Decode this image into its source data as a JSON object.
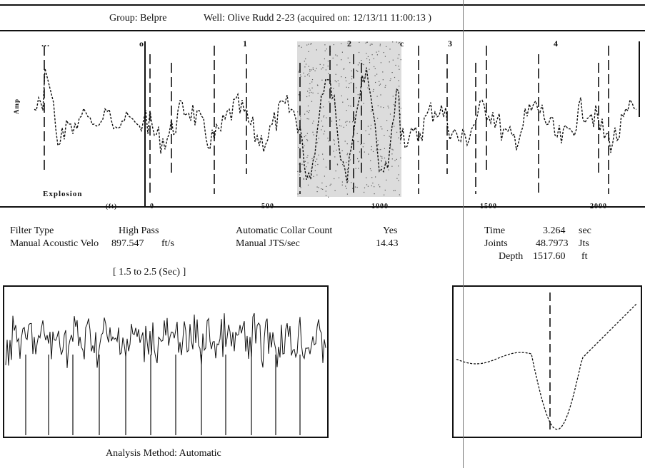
{
  "header": {
    "group_label": "Group: Belpre",
    "well_label": "Well: Olive Rudd 2-23 (acquired on: 12/13/11 11:00:13 )"
  },
  "main_trace": {
    "time_ticks": [
      ".5",
      "1",
      "2",
      "3",
      "4"
    ],
    "top_markers": [
      "...",
      "o",
      "c",
      "o"
    ],
    "depth_ticks": [
      "0",
      "500",
      "1000",
      "1500",
      "2000"
    ],
    "unit_label": "(ft)",
    "event_label": "Explosion",
    "axis_vertical_label": "Amp"
  },
  "params": {
    "filter_type_label": "Filter Type",
    "filter_type_value": "High Pass",
    "acoustic_label": "Manual Acoustic Velo",
    "acoustic_value": "897.547",
    "acoustic_unit": "ft/s",
    "collar_label": "Automatic Collar Count",
    "collar_value": "Yes",
    "jts_label": "Manual JTS/sec",
    "jts_value": "14.43",
    "time_label": "Time",
    "time_value": "3.264",
    "time_unit": "sec",
    "joints_label": "Joints",
    "joints_value": "48.7973",
    "joints_unit": "Jts",
    "depth_label": "Depth",
    "depth_value": "1517.60",
    "depth_unit": "ft"
  },
  "window_range": "[ 1.5 to 2.5 (Sec) ]",
  "analysis_method": "Analysis Method:  Automatic",
  "colors": {
    "ink": "#111111",
    "shade": "#d8d8d8"
  }
}
